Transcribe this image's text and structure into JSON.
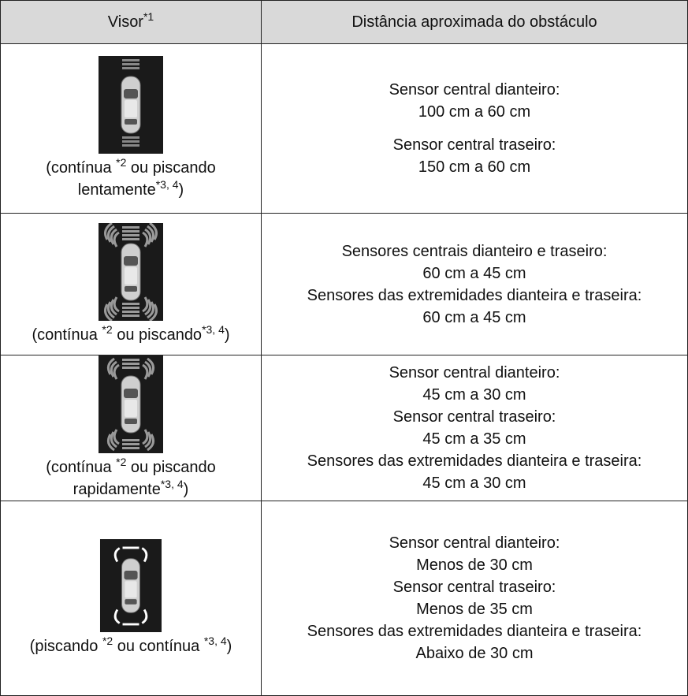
{
  "table": {
    "header": [
      {
        "text": "Visor",
        "sup": "*1"
      },
      {
        "text": "Distância aproximada do obstáculo"
      }
    ],
    "rows": [
      {
        "caption": [
          {
            "text": "(contínua "
          },
          {
            "sup": "*2"
          },
          {
            "text": " ou piscando lentamente"
          },
          {
            "sup": "*3, 4"
          },
          {
            "text": ")"
          }
        ],
        "distances": [
          "Sensor central dianteiro:",
          "100 cm a 60 cm",
          "Sensor central traseiro:",
          "150 cm a 60 cm"
        ]
      },
      {
        "caption": [
          {
            "text": "(contínua "
          },
          {
            "sup": "*2"
          },
          {
            "text": " ou piscando"
          },
          {
            "sup": "*3, 4"
          },
          {
            "text": ")"
          }
        ],
        "distances": [
          "Sensores centrais dianteiro e traseiro:",
          "60 cm a 45 cm",
          "Sensores das extremidades dianteira e traseira:",
          "60 cm a 45 cm"
        ]
      },
      {
        "caption": [
          {
            "text": "(contínua "
          },
          {
            "sup": "*2"
          },
          {
            "text": " ou piscando rapidamente"
          },
          {
            "sup": "*3, 4"
          },
          {
            "text": ")"
          }
        ],
        "distances": [
          "Sensor central dianteiro:",
          "45 cm a 30 cm",
          "Sensor central traseiro:",
          "45 cm a 35 cm",
          "Sensores das extremidades dianteira e traseira:",
          "45 cm a 30 cm"
        ]
      },
      {
        "caption": [
          {
            "text": "(piscando "
          },
          {
            "sup": "*2"
          },
          {
            "text": " ou contínua "
          },
          {
            "sup": "*3, 4"
          },
          {
            "text": ")"
          }
        ],
        "distances": [
          "Sensor central dianteiro:",
          "Menos de 30 cm",
          "Sensor central traseiro:",
          "Menos de 35 cm",
          "Sensores das extremidades dianteira e traseira:",
          "Abaixo de 30 cm"
        ]
      }
    ]
  }
}
